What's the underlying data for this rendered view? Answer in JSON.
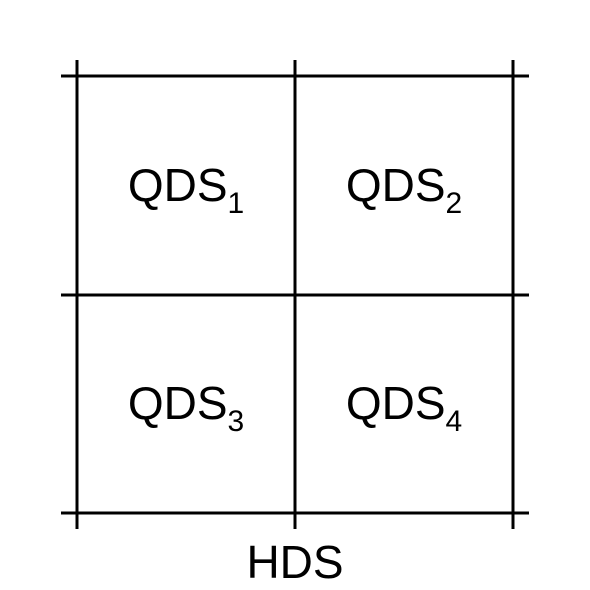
{
  "stroke_color": "#000000",
  "background_color": "#ffffff",
  "quadrants": [
    {
      "base": "QDS",
      "sub": "1"
    },
    {
      "base": "QDS",
      "sub": "2"
    },
    {
      "base": "QDS",
      "sub": "3"
    },
    {
      "base": "QDS",
      "sub": "4"
    }
  ],
  "bottom_label": "HDS"
}
